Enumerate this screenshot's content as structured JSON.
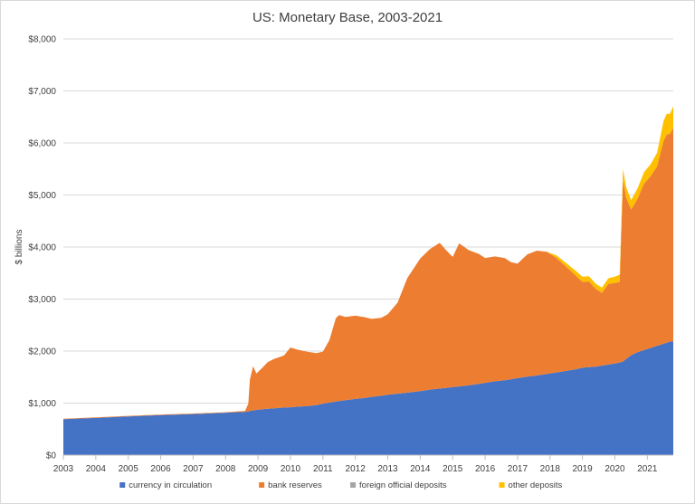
{
  "chart_data": {
    "type": "area",
    "title": "US: Monetary Base, 2003-2021",
    "xlabel": "",
    "ylabel": "$ billions",
    "x_ticks": [
      "2003",
      "2004",
      "2005",
      "2006",
      "2007",
      "2008",
      "2009",
      "2010",
      "2011",
      "2012",
      "2013",
      "2014",
      "2015",
      "2016",
      "2017",
      "2018",
      "2019",
      "2020",
      "2021"
    ],
    "y_ticks": [
      "$0",
      "$1,000",
      "$2,000",
      "$3,000",
      "$4,000",
      "$5,000",
      "$6,000",
      "$7,000",
      "$8,000"
    ],
    "ylim": [
      0,
      8000
    ],
    "xlim": [
      2003.0,
      2021.8
    ],
    "grid": true,
    "legend_position": "bottom",
    "colors": {
      "currency in circulation": "#4472c4",
      "bank reserves": "#ed7d31",
      "foreign official deposits": "#a5a5a5",
      "other deposits": "#ffc000"
    },
    "x": [
      2003.0,
      2004.0,
      2005.0,
      2006.0,
      2007.0,
      2008.0,
      2008.6,
      2008.7,
      2008.75,
      2008.85,
      2008.95,
      2009.1,
      2009.3,
      2009.5,
      2009.8,
      2010.0,
      2010.2,
      2010.5,
      2010.8,
      2011.0,
      2011.2,
      2011.4,
      2011.5,
      2011.7,
      2012.0,
      2012.3,
      2012.5,
      2012.8,
      2013.0,
      2013.3,
      2013.6,
      2014.0,
      2014.3,
      2014.6,
      2014.8,
      2015.0,
      2015.2,
      2015.5,
      2015.8,
      2016.0,
      2016.3,
      2016.6,
      2016.8,
      2017.0,
      2017.3,
      2017.6,
      2017.9,
      2018.2,
      2018.5,
      2018.8,
      2019.0,
      2019.2,
      2019.4,
      2019.6,
      2019.8,
      2020.0,
      2020.15,
      2020.25,
      2020.35,
      2020.5,
      2020.7,
      2020.9,
      2021.1,
      2021.3,
      2021.5,
      2021.6,
      2021.7,
      2021.8
    ],
    "series": [
      {
        "name": "currency in circulation",
        "values": [
          690,
          715,
          745,
          770,
          790,
          815,
          830,
          840,
          850,
          860,
          870,
          880,
          890,
          900,
          915,
          920,
          930,
          940,
          960,
          990,
          1010,
          1030,
          1040,
          1055,
          1080,
          1100,
          1120,
          1140,
          1160,
          1180,
          1200,
          1230,
          1260,
          1280,
          1290,
          1310,
          1320,
          1340,
          1370,
          1390,
          1420,
          1440,
          1460,
          1480,
          1510,
          1530,
          1560,
          1590,
          1620,
          1650,
          1680,
          1690,
          1700,
          1720,
          1740,
          1760,
          1780,
          1800,
          1850,
          1920,
          1980,
          2020,
          2060,
          2100,
          2140,
          2160,
          2180,
          2190
        ]
      },
      {
        "name": "bank reserves",
        "values": [
          10,
          10,
          10,
          10,
          10,
          10,
          20,
          150,
          600,
          850,
          700,
          780,
          900,
          950,
          1000,
          1150,
          1100,
          1050,
          1000,
          1000,
          1200,
          1600,
          1650,
          1600,
          1600,
          1550,
          1500,
          1500,
          1550,
          1750,
          2200,
          2550,
          2700,
          2800,
          2650,
          2500,
          2750,
          2600,
          2500,
          2400,
          2400,
          2350,
          2250,
          2200,
          2350,
          2400,
          2350,
          2200,
          2000,
          1800,
          1650,
          1650,
          1500,
          1400,
          1550,
          1550,
          1550,
          3500,
          3100,
          2800,
          2950,
          3200,
          3300,
          3450,
          3900,
          4000,
          4000,
          4100
        ]
      },
      {
        "name": "foreign official deposits",
        "values": [
          0,
          0,
          0,
          0,
          0,
          0,
          0,
          0,
          0,
          0,
          0,
          0,
          0,
          0,
          0,
          0,
          0,
          0,
          0,
          0,
          0,
          0,
          0,
          0,
          0,
          0,
          0,
          0,
          0,
          0,
          0,
          0,
          0,
          0,
          0,
          0,
          0,
          0,
          0,
          0,
          0,
          0,
          0,
          0,
          0,
          0,
          0,
          0,
          0,
          0,
          0,
          0,
          0,
          0,
          0,
          0,
          0,
          0,
          0,
          0,
          0,
          0,
          0,
          0,
          0,
          0,
          0,
          0
        ]
      },
      {
        "name": "other deposits",
        "values": [
          0,
          0,
          0,
          0,
          0,
          0,
          0,
          0,
          0,
          0,
          0,
          0,
          0,
          0,
          0,
          0,
          0,
          0,
          0,
          0,
          0,
          0,
          0,
          0,
          0,
          0,
          0,
          0,
          0,
          0,
          0,
          0,
          0,
          0,
          0,
          0,
          0,
          0,
          0,
          0,
          0,
          0,
          0,
          0,
          0,
          0,
          0,
          50,
          70,
          90,
          100,
          100,
          100,
          100,
          110,
          120,
          140,
          200,
          200,
          180,
          200,
          220,
          230,
          260,
          380,
          400,
          380,
          420
        ]
      }
    ]
  }
}
